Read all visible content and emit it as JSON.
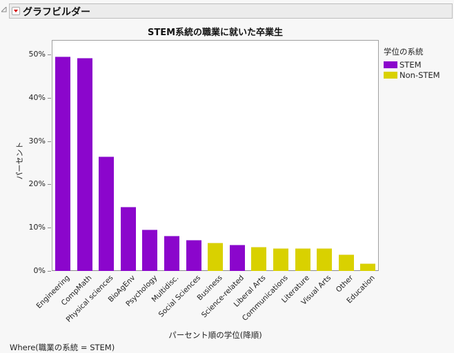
{
  "window": {
    "outline_title": "グラフビルダー"
  },
  "chart_data": {
    "type": "bar",
    "title": "STEM系統の職業に就いた卒業生",
    "xlabel": "パーセント順の学位(降順)",
    "ylabel": "パーセント",
    "ylim": [
      0,
      53
    ],
    "yticks": [
      "0%",
      "10%",
      "20%",
      "30%",
      "40%",
      "50%"
    ],
    "grid": false,
    "legend_position": "right",
    "legend_title": "学位の系統",
    "legend": [
      {
        "name": "STEM",
        "color": "#8b06cc"
      },
      {
        "name": "Non-STEM",
        "color": "#d9d100"
      }
    ],
    "categories": [
      "Engineering",
      "CompMath",
      "Physical sciences",
      "BioAgEnv",
      "Psychology",
      "Multidisc.",
      "Social Sciences",
      "Business",
      "Science-related",
      "Liberal Arts",
      "Communications",
      "Literature",
      "Visual Arts",
      "Other",
      "Education"
    ],
    "values": [
      49.5,
      49.2,
      26.4,
      14.8,
      9.5,
      8.2,
      7.1,
      6.5,
      6.0,
      5.5,
      5.3,
      5.3,
      5.2,
      3.9,
      1.8
    ],
    "groups": [
      "STEM",
      "STEM",
      "STEM",
      "STEM",
      "STEM",
      "STEM",
      "STEM",
      "Non-STEM",
      "STEM",
      "Non-STEM",
      "Non-STEM",
      "Non-STEM",
      "Non-STEM",
      "Non-STEM",
      "Non-STEM"
    ],
    "where_clause": "Where(職業の系統 = STEM)"
  }
}
